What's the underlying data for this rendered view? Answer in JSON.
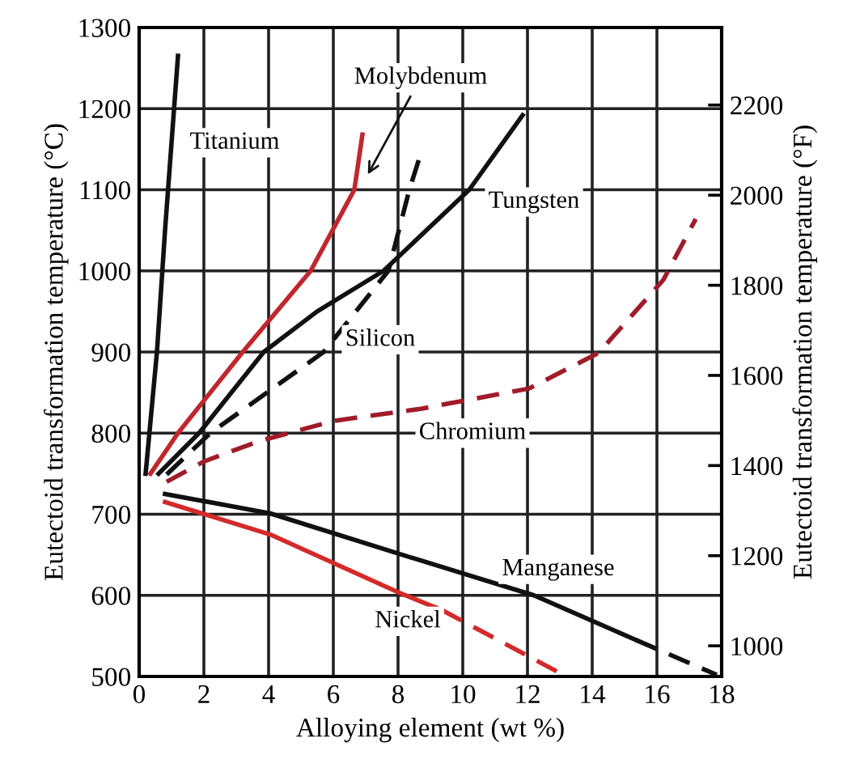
{
  "chart_data": {
    "type": "line",
    "xlabel": "Alloying element (wt %)",
    "ylabel": "Eutectoid transformation temperature (°C)",
    "y2label": "Eutectoid transformation temperature (°F)",
    "xlim": [
      0,
      18
    ],
    "xticks": [
      0,
      2,
      4,
      6,
      8,
      10,
      12,
      14,
      16,
      18
    ],
    "ylim": [
      500,
      1300
    ],
    "yticks": [
      500,
      600,
      700,
      800,
      900,
      1000,
      1100,
      1200,
      1300
    ],
    "y2lim": [
      932,
      2372
    ],
    "y2ticks": [
      1000,
      1200,
      1400,
      1600,
      1800,
      2000,
      2200
    ],
    "grid": true,
    "legend": false,
    "marker": "none",
    "series": [
      {
        "name": "Titanium",
        "color": "#111111",
        "line_style": "solid",
        "x": [
          0.2,
          0.55,
          0.8,
          1.2
        ],
        "values": [
          750,
          900,
          1050,
          1265
        ]
      },
      {
        "name": "Molybdenum",
        "color": "#c0272d",
        "line_style": "solid",
        "x": [
          0.35,
          1.2,
          3.2,
          5.3,
          6.65,
          6.9
        ],
        "values": [
          750,
          800,
          900,
          1000,
          1100,
          1168
        ]
      },
      {
        "name": "Tungsten",
        "color": "#111111",
        "line_style": "solid",
        "x": [
          0.6,
          1.85,
          3.85,
          5.5,
          7.55,
          10.2,
          11.85
        ],
        "values": [
          750,
          800,
          900,
          950,
          1000,
          1100,
          1192
        ]
      },
      {
        "name": "Silicon",
        "color": "#111111",
        "line_style": "dashed",
        "x": [
          0.85,
          2.2,
          5.7,
          7.7,
          8.35,
          8.65
        ],
        "values": [
          749,
          800,
          900,
          1000,
          1100,
          1138
        ]
      },
      {
        "name": "Chromium",
        "color": "#a01c2a",
        "line_style": "dashed",
        "x": [
          0.85,
          2,
          3.7,
          6,
          8.7,
          12.05,
          14.2,
          16.2,
          17.2
        ],
        "values": [
          740,
          765,
          790,
          815,
          830,
          855,
          899,
          989,
          1064
        ]
      },
      {
        "name": "Manganese",
        "color": "#111111",
        "line_style": "solid",
        "x": [
          0.8,
          4.05,
          8.05,
          12.2,
          15.35
        ],
        "values": [
          725,
          701,
          651,
          600,
          545
        ]
      },
      {
        "color": "#111111",
        "line_style": "dashed",
        "x": [
          15.35,
          17.85
        ],
        "values": [
          545,
          502
        ]
      },
      {
        "name": "Nickel",
        "color": "#d42a2a",
        "line_style": "solid",
        "x": [
          0.8,
          4.05,
          8.05,
          9.35
        ],
        "values": [
          715,
          675,
          603,
          582
        ]
      },
      {
        "color": "#d42a2a",
        "line_style": "dashed",
        "x": [
          9.35,
          13.2
        ],
        "values": [
          582,
          500
        ]
      }
    ]
  }
}
